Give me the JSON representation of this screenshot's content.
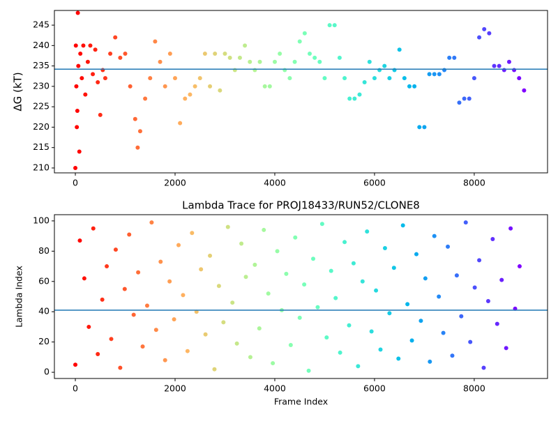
{
  "chart_data": [
    {
      "type": "scatter",
      "ylabel": "ΔG (kT)",
      "colormap": "rainbow_r",
      "x": [
        0,
        10,
        20,
        30,
        40,
        50,
        60,
        80,
        100,
        130,
        160,
        200,
        250,
        300,
        350,
        400,
        450,
        500,
        550,
        600,
        700,
        800,
        900,
        1000,
        1100,
        1200,
        1250,
        1300,
        1400,
        1500,
        1600,
        1700,
        1800,
        1900,
        2000,
        2100,
        2200,
        2300,
        2400,
        2500,
        2600,
        2700,
        2800,
        2900,
        3000,
        3100,
        3200,
        3300,
        3400,
        3500,
        3600,
        3700,
        3800,
        3900,
        4000,
        4100,
        4200,
        4300,
        4400,
        4500,
        4600,
        4700,
        4800,
        4900,
        5000,
        5100,
        5200,
        5300,
        5400,
        5500,
        5600,
        5700,
        5800,
        5900,
        6000,
        6100,
        6200,
        6300,
        6400,
        6500,
        6600,
        6700,
        6800,
        6900,
        7000,
        7100,
        7200,
        7300,
        7400,
        7500,
        7600,
        7700,
        7800,
        7900,
        8000,
        8100,
        8200,
        8300,
        8400,
        8500,
        8600,
        8700,
        8800,
        8900,
        9000
      ],
      "y": [
        210,
        240,
        230,
        220,
        224,
        248,
        235,
        214,
        238,
        232,
        240,
        228,
        236,
        240,
        233,
        239,
        231,
        223,
        234,
        232,
        238,
        242,
        237,
        238,
        230,
        222,
        215,
        219,
        227,
        232,
        241,
        236,
        230,
        238,
        232,
        221,
        227,
        228,
        230,
        232,
        238,
        230,
        238,
        229,
        238,
        237,
        234,
        237,
        240,
        236,
        234,
        236,
        230,
        230,
        236,
        238,
        234,
        232,
        236,
        241,
        243,
        238,
        237,
        236,
        232,
        245,
        245,
        237,
        232,
        227,
        227,
        228,
        231,
        236,
        232,
        234,
        235,
        232,
        234,
        239,
        232,
        230,
        230,
        220,
        220,
        233,
        233,
        233,
        234,
        237,
        237,
        226,
        227,
        227,
        232,
        242,
        244,
        243,
        235,
        235,
        234,
        236,
        234,
        232,
        229
      ],
      "hline": {
        "value": 234.2,
        "color": "#1f77b4"
      },
      "xlim": [
        -420,
        9470
      ],
      "ylim": [
        208.8,
        248.6
      ],
      "xticks": [
        0,
        2000,
        4000,
        6000,
        8000
      ],
      "yticks": [
        210,
        215,
        220,
        225,
        230,
        235,
        240,
        245
      ]
    },
    {
      "type": "scatter",
      "title": "Lambda Trace for PROJ18433/RUN52/CLONE8",
      "xlabel": "Frame Index",
      "ylabel": "Lambda Index",
      "colormap": "rainbow_r",
      "x": [
        0,
        90,
        180,
        270,
        360,
        450,
        540,
        630,
        720,
        810,
        900,
        990,
        1080,
        1170,
        1260,
        1350,
        1440,
        1530,
        1620,
        1710,
        1800,
        1890,
        1980,
        2070,
        2160,
        2250,
        2340,
        2430,
        2520,
        2610,
        2700,
        2790,
        2880,
        2970,
        3060,
        3150,
        3240,
        3330,
        3420,
        3510,
        3600,
        3690,
        3780,
        3870,
        3960,
        4050,
        4140,
        4230,
        4320,
        4410,
        4500,
        4590,
        4680,
        4770,
        4860,
        4950,
        5040,
        5130,
        5220,
        5310,
        5400,
        5490,
        5580,
        5670,
        5760,
        5850,
        5940,
        6030,
        6120,
        6210,
        6300,
        6390,
        6480,
        6570,
        6660,
        6750,
        6840,
        6930,
        7020,
        7110,
        7200,
        7290,
        7380,
        7470,
        7560,
        7650,
        7740,
        7830,
        7920,
        8010,
        8100,
        8190,
        8280,
        8370,
        8460,
        8550,
        8640,
        8730,
        8820,
        8910
      ],
      "y": [
        5,
        87,
        62,
        30,
        95,
        12,
        48,
        70,
        22,
        81,
        3,
        55,
        91,
        38,
        66,
        17,
        44,
        99,
        28,
        73,
        8,
        60,
        35,
        84,
        51,
        14,
        92,
        40,
        68,
        25,
        77,
        2,
        57,
        33,
        96,
        46,
        19,
        85,
        63,
        10,
        71,
        29,
        94,
        52,
        6,
        80,
        41,
        65,
        18,
        89,
        36,
        58,
        1,
        75,
        43,
        98,
        23,
        67,
        49,
        13,
        86,
        31,
        72,
        4,
        60,
        93,
        27,
        54,
        15,
        82,
        39,
        69,
        9,
        97,
        45,
        21,
        78,
        34,
        62,
        7,
        90,
        50,
        26,
        83,
        11,
        64,
        37,
        99,
        20,
        56,
        74,
        3,
        47,
        88,
        32,
        61,
        16,
        95,
        42,
        70
      ],
      "hline": {
        "value": 41,
        "color": "#1f77b4"
      },
      "xlim": [
        -420,
        9470
      ],
      "ylim": [
        -4.1,
        104.1
      ],
      "xticks": [
        0,
        2000,
        4000,
        6000,
        8000
      ],
      "yticks": [
        0,
        20,
        40,
        60,
        80,
        100
      ]
    }
  ]
}
